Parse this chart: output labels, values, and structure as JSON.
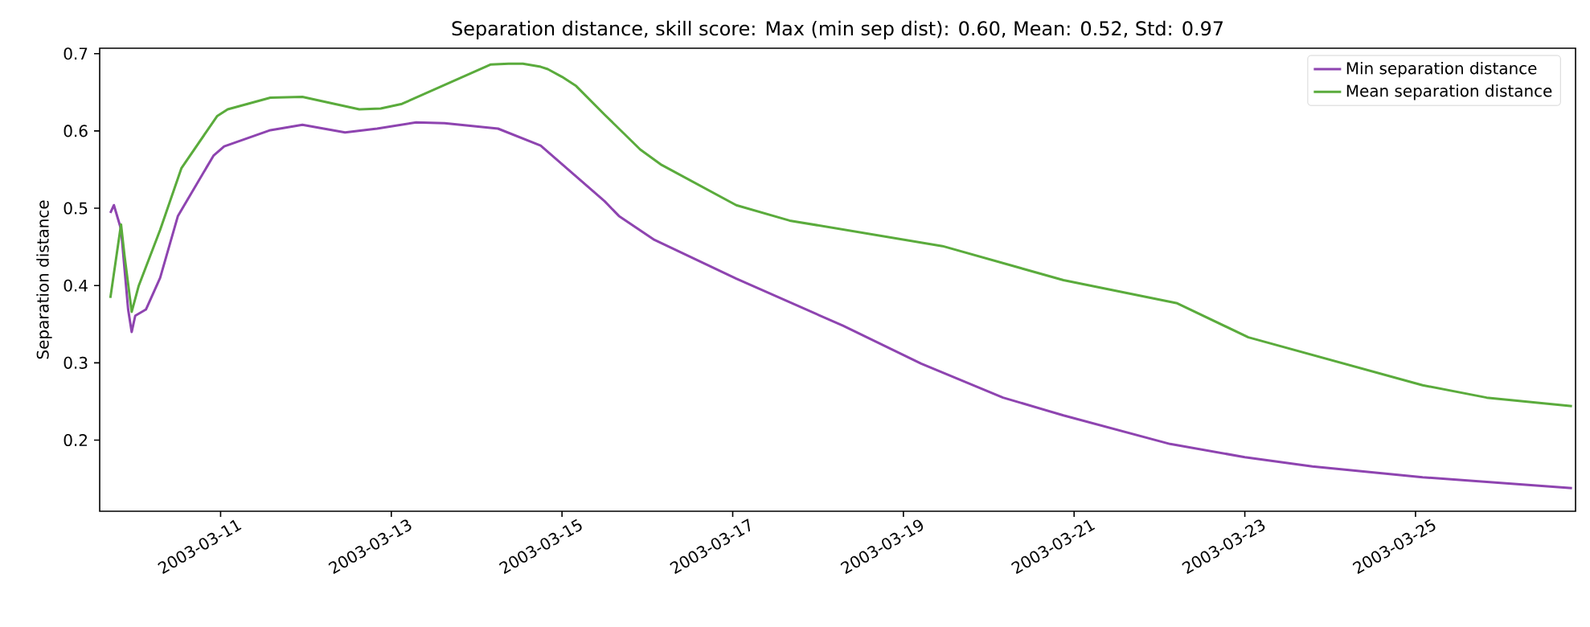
{
  "chart_data": {
    "type": "line",
    "title": "Separation distance, skill score: Max (min sep dist): 0.60, Mean: 0.52, Std: 0.97",
    "ylabel": "Separation distance",
    "xlim": [
      "2003-03-09T14:00",
      "2003-03-26T21:00"
    ],
    "xticks": [
      "2003-03-11",
      "2003-03-13",
      "2003-03-15",
      "2003-03-17",
      "2003-03-19",
      "2003-03-21",
      "2003-03-23",
      "2003-03-25"
    ],
    "ylim": [
      0.108,
      0.707
    ],
    "yticks": [
      0.2,
      0.3,
      0.4,
      0.5,
      0.6,
      0.7
    ],
    "legend": "top right",
    "grid": false,
    "marker": "none",
    "line_style": "solid",
    "series": [
      {
        "name": "Min separation distance",
        "color": "#8e44b0",
        "x": [
          "2003-03-09T17:00",
          "2003-03-09T18:00",
          "2003-03-09T20:00",
          "2003-03-09T22:00",
          "2003-03-09T23:00",
          "2003-03-10T00:00",
          "2003-03-10T03:00",
          "2003-03-10T07:00",
          "2003-03-10T12:00",
          "2003-03-10T22:00",
          "2003-03-11T01:00",
          "2003-03-11T14:00",
          "2003-03-11T23:00",
          "2003-03-12T11:00",
          "2003-03-12T20:00",
          "2003-03-13T07:00",
          "2003-03-13T15:00",
          "2003-03-14T06:00",
          "2003-03-14T18:00",
          "2003-03-15T12:00",
          "2003-03-15T16:00",
          "2003-03-16T02:00",
          "2003-03-17T01:00",
          "2003-03-18T07:00",
          "2003-03-19T05:00",
          "2003-03-20T04:00",
          "2003-03-20T21:00",
          "2003-03-22T03:00",
          "2003-03-23T00:00",
          "2003-03-23T19:00",
          "2003-03-25T02:00",
          "2003-03-26T20:00"
        ],
        "values": [
          0.494,
          0.504,
          0.473,
          0.369,
          0.34,
          0.361,
          0.369,
          0.41,
          0.49,
          0.568,
          0.58,
          0.601,
          0.608,
          0.598,
          0.603,
          0.611,
          0.61,
          0.603,
          0.581,
          0.509,
          0.49,
          0.459,
          0.409,
          0.348,
          0.299,
          0.255,
          0.232,
          0.195,
          0.178,
          0.166,
          0.152,
          0.138
        ]
      },
      {
        "name": "Mean separation distance",
        "color": "#5aab3c",
        "x": [
          "2003-03-09T17:00",
          "2003-03-09T20:00",
          "2003-03-09T21:00",
          "2003-03-09T23:00",
          "2003-03-10T01:00",
          "2003-03-10T07:00",
          "2003-03-10T13:00",
          "2003-03-10T23:00",
          "2003-03-11T02:00",
          "2003-03-11T14:00",
          "2003-03-11T23:00",
          "2003-03-12T15:00",
          "2003-03-12T21:00",
          "2003-03-13T03:00",
          "2003-03-14T04:00",
          "2003-03-14T09:00",
          "2003-03-14T13:00",
          "2003-03-14T18:00",
          "2003-03-14T20:00",
          "2003-03-15T00:00",
          "2003-03-15T04:00",
          "2003-03-15T12:00",
          "2003-03-15T22:00",
          "2003-03-16T04:00",
          "2003-03-17T01:00",
          "2003-03-17T16:00",
          "2003-03-19T11:00",
          "2003-03-20T21:00",
          "2003-03-22T05:00",
          "2003-03-23T01:00",
          "2003-03-25T02:00",
          "2003-03-25T20:00",
          "2003-03-26T20:00"
        ],
        "values": [
          0.384,
          0.479,
          0.438,
          0.366,
          0.4,
          0.472,
          0.552,
          0.619,
          0.628,
          0.643,
          0.644,
          0.628,
          0.629,
          0.635,
          0.686,
          0.687,
          0.687,
          0.683,
          0.68,
          0.67,
          0.658,
          0.621,
          0.576,
          0.556,
          0.504,
          0.484,
          0.451,
          0.407,
          0.377,
          0.333,
          0.271,
          0.255,
          0.244
        ]
      }
    ]
  }
}
